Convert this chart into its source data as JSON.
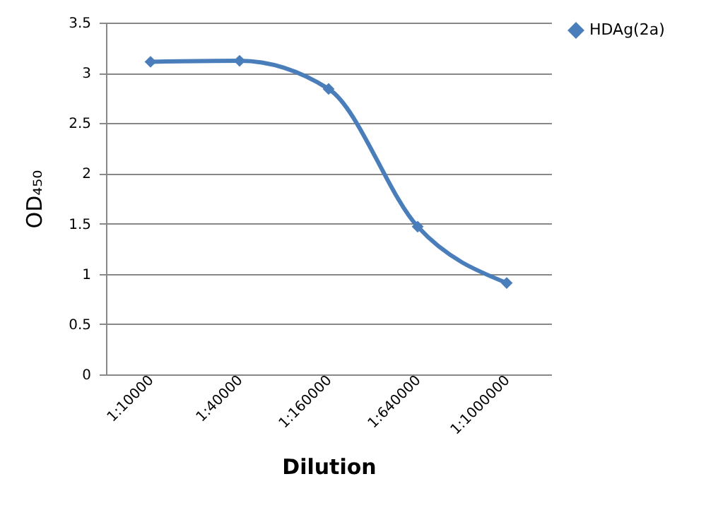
{
  "chart_data": {
    "type": "line",
    "xlabel": "Dilution",
    "ylabel": "OD₄₅₀",
    "categories": [
      "1:10000",
      "1:40000",
      "1:160000",
      "1:640000",
      "1:1000000"
    ],
    "series": [
      {
        "name": "HDAg(2a)",
        "color": "#4a7ebb",
        "values": [
          3.11,
          3.12,
          2.84,
          1.47,
          0.91
        ]
      }
    ],
    "ylim": [
      0,
      3.5
    ],
    "yticks": [
      0,
      0.5,
      1,
      1.5,
      2,
      2.5,
      3,
      3.5
    ],
    "grid": "y",
    "legend": "right",
    "marker": "diamond",
    "line_style": "solid"
  }
}
